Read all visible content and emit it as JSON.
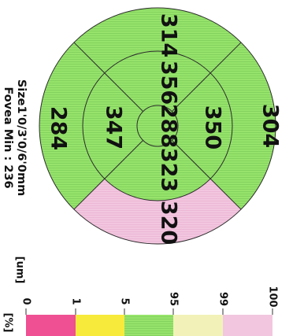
{
  "map": {
    "center": "288",
    "inner_superior": "356",
    "inner_inferior": "323",
    "inner_nasal": "350",
    "inner_temporal": "347",
    "outer_superior": "314",
    "outer_inferior": "320",
    "outer_nasal": "304",
    "outer_temporal": "284"
  },
  "info": {
    "size": "Size1'0/3'0/6'0mm",
    "fovea_min": "Fovea Min : 236"
  },
  "scale": {
    "unit": "[um]",
    "percent_unit": "[%]",
    "ticks": [
      "0",
      "1",
      "5",
      "95",
      "99",
      "100"
    ]
  },
  "colors": {
    "normal": "#96e36b",
    "above_99": "#f2c6df",
    "below_1": "#ef4f93",
    "band_1_5": "#f7ea3a",
    "band_95_99": "#f2f2b8",
    "stripe": "#7bc65a"
  }
}
